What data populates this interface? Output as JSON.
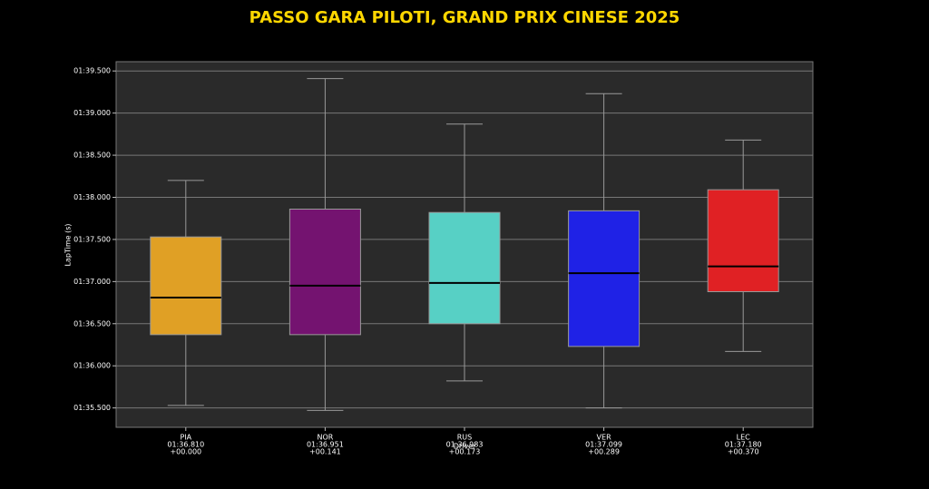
{
  "chart_data": {
    "type": "box",
    "title": "PASSO GARA PILOTI, GRAND PRIX CINESE 2025",
    "xlabel": "Driver",
    "ylabel": "LapTime (s)",
    "categories": [
      "PIA",
      "NOR",
      "RUS",
      "VER",
      "LEC"
    ],
    "delta_labels": [
      "+00.000",
      "+00.141",
      "+00.173",
      "+00.289",
      "+00.370"
    ],
    "boxes": [
      {
        "color": "#e0a025",
        "whislo": 95.53,
        "q1": 96.37,
        "med": 96.81,
        "med_label": "01:36.810",
        "q3": 97.53,
        "whishi": 98.2
      },
      {
        "color": "#741370",
        "whislo": 95.47,
        "q1": 96.37,
        "med": 96.951,
        "med_label": "01:36.951",
        "q3": 97.86,
        "whishi": 99.41
      },
      {
        "color": "#57d0c5",
        "whislo": 95.82,
        "q1": 96.5,
        "med": 96.983,
        "med_label": "01:36.983",
        "q3": 97.82,
        "whishi": 98.87
      },
      {
        "color": "#1f22e6",
        "whislo": 95.5,
        "q1": 96.23,
        "med": 97.099,
        "med_label": "01:37.099",
        "q3": 97.84,
        "whishi": 99.23
      },
      {
        "color": "#e02124",
        "whislo": 96.17,
        "q1": 96.88,
        "med": 97.18,
        "med_label": "01:37.180",
        "q3": 98.09,
        "whishi": 98.68
      }
    ],
    "ylim": [
      95.27,
      99.61
    ],
    "yticks": [
      {
        "value": 95.5,
        "label": "01:35.500"
      },
      {
        "value": 96,
        "label": "01:36.000"
      },
      {
        "value": 96.5,
        "label": "01:36.500"
      },
      {
        "value": 97,
        "label": "01:37.000"
      },
      {
        "value": 97.5,
        "label": "01:37.500"
      },
      {
        "value": 98,
        "label": "01:38.000"
      },
      {
        "value": 98.5,
        "label": "01:38.500"
      },
      {
        "value": 99,
        "label": "01:39.000"
      },
      {
        "value": 99.5,
        "label": "01:39.500"
      }
    ],
    "grid": true
  }
}
